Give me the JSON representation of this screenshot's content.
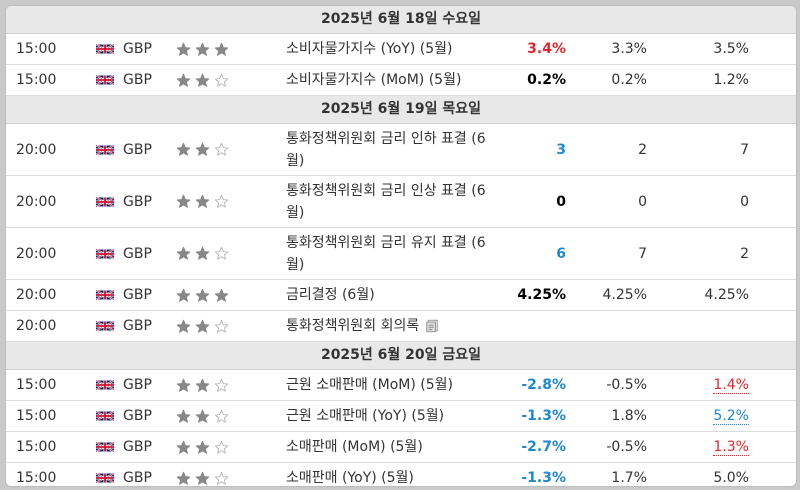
{
  "sections": [
    {
      "date": "2025년 6월 18일 수요일",
      "rows": [
        {
          "time": "15:00",
          "currency": "GBP",
          "stars": 3,
          "event": "소비자물가지수 (YoY) (5월)",
          "actual": "3.4%",
          "actual_color": "red",
          "forecast": "3.3%",
          "previous": "3.5%",
          "previous_style": ""
        },
        {
          "time": "15:00",
          "currency": "GBP",
          "stars": 2,
          "event": "소비자물가지수 (MoM) (5월)",
          "actual": "0.2%",
          "actual_color": "black",
          "forecast": "0.2%",
          "previous": "1.2%",
          "previous_style": ""
        }
      ]
    },
    {
      "date": "2025년 6월 19일 목요일",
      "rows": [
        {
          "time": "20:00",
          "currency": "GBP",
          "stars": 2,
          "event": "통화정책위원회 금리 인하 표결 (6월)",
          "actual": "3",
          "actual_color": "blue",
          "forecast": "2",
          "previous": "7",
          "previous_style": "",
          "tall": true
        },
        {
          "time": "20:00",
          "currency": "GBP",
          "stars": 2,
          "event": "통화정책위원회 금리 인상 표결 (6월)",
          "actual": "0",
          "actual_color": "black",
          "forecast": "0",
          "previous": "0",
          "previous_style": "",
          "tall": true
        },
        {
          "time": "20:00",
          "currency": "GBP",
          "stars": 2,
          "event": "통화정책위원회 금리 유지 표결 (6월)",
          "actual": "6",
          "actual_color": "blue",
          "forecast": "7",
          "previous": "2",
          "previous_style": "",
          "tall": true
        },
        {
          "time": "20:00",
          "currency": "GBP",
          "stars": 3,
          "event": "금리결정 (6월)",
          "actual": "4.25%",
          "actual_color": "black",
          "forecast": "4.25%",
          "previous": "4.25%",
          "previous_style": ""
        },
        {
          "time": "20:00",
          "currency": "GBP",
          "stars": 2,
          "event": "통화정책위원회 회의록",
          "actual": "",
          "actual_color": "black",
          "forecast": "",
          "previous": "",
          "previous_style": "",
          "doc_icon": true
        }
      ]
    },
    {
      "date": "2025년 6월 20일 금요일",
      "rows": [
        {
          "time": "15:00",
          "currency": "GBP",
          "stars": 2,
          "event": "근원 소매판매 (MoM) (5월)",
          "actual": "-2.8%",
          "actual_color": "blue",
          "forecast": "-0.5%",
          "previous": "1.4%",
          "previous_style": "red"
        },
        {
          "time": "15:00",
          "currency": "GBP",
          "stars": 2,
          "event": "근원 소매판매 (YoY) (5월)",
          "actual": "-1.3%",
          "actual_color": "blue",
          "forecast": "1.8%",
          "previous": "5.2%",
          "previous_style": "blue"
        },
        {
          "time": "15:00",
          "currency": "GBP",
          "stars": 2,
          "event": "소매판매 (MoM) (5월)",
          "actual": "-2.7%",
          "actual_color": "blue",
          "forecast": "-0.5%",
          "previous": "1.3%",
          "previous_style": "red"
        },
        {
          "time": "15:00",
          "currency": "GBP",
          "stars": 2,
          "event": "소매판매 (YoY) (5월)",
          "actual": "-1.3%",
          "actual_color": "blue",
          "forecast": "1.7%",
          "previous": "5.0%",
          "previous_style": ""
        }
      ]
    }
  ],
  "icons": {
    "flag": "uk-flag-icon",
    "star": "star-icon",
    "doc": "document-icon"
  },
  "colors": {
    "red": "#e3262e",
    "blue": "#1e88d0",
    "star_filled": "#888888",
    "star_empty": "#bbbbbb"
  }
}
